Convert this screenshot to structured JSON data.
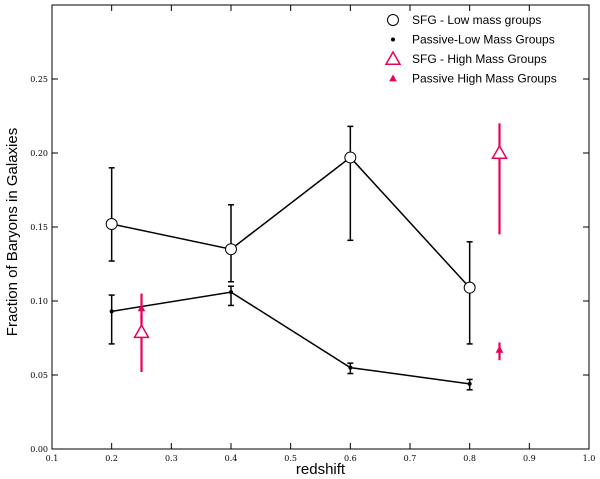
{
  "chart_data": {
    "type": "scatter",
    "xlabel": "redshift",
    "ylabel": "Fraction of Baryons in Galaxies",
    "xlim": [
      0.1,
      1.0
    ],
    "ylim": [
      0.0,
      0.3
    ],
    "xticks": [
      0.1,
      0.2,
      0.3,
      0.4,
      0.5,
      0.6,
      0.7,
      0.8,
      0.9,
      1.0
    ],
    "xtick_labels": [
      "0.1",
      "0.2",
      "0.3",
      "0.4",
      "0.5",
      "0.6",
      "0.7",
      "0.8",
      "0.9",
      "1.0"
    ],
    "yticks": [
      0.0,
      0.05,
      0.1,
      0.15,
      0.2,
      0.25
    ],
    "ytick_labels": [
      "0.00",
      "0.05",
      "0.10",
      "0.15",
      "0.20",
      "0.25"
    ],
    "grid": false,
    "legend_position": "top-right",
    "series": [
      {
        "name": "SFG - Low mass groups",
        "marker": "open-circle",
        "color": "#000000",
        "connected": true,
        "x": [
          0.2,
          0.4,
          0.6,
          0.8
        ],
        "y": [
          0.152,
          0.135,
          0.197,
          0.109
        ],
        "yerr_low": [
          0.127,
          0.113,
          0.141,
          0.071
        ],
        "yerr_high": [
          0.19,
          0.165,
          0.218,
          0.14
        ]
      },
      {
        "name": "Passive-Low Mass Groups",
        "marker": "dot",
        "color": "#000000",
        "connected": true,
        "x": [
          0.2,
          0.4,
          0.6,
          0.8
        ],
        "y": [
          0.093,
          0.106,
          0.055,
          0.044
        ],
        "yerr_low": [
          0.071,
          0.097,
          0.051,
          0.04
        ],
        "yerr_high": [
          0.104,
          0.11,
          0.058,
          0.047
        ]
      },
      {
        "name": "SFG - High Mass Groups",
        "marker": "open-triangle",
        "color": "#e8005a",
        "connected": false,
        "x": [
          0.25,
          0.85
        ],
        "y": [
          0.079,
          0.2
        ],
        "yerr_low": [
          0.052,
          0.145
        ],
        "yerr_high": [
          0.091,
          0.22
        ]
      },
      {
        "name": "Passive High Mass Groups",
        "marker": "small-triangle",
        "color": "#e8005a",
        "connected": false,
        "x": [
          0.25,
          0.85
        ],
        "y": [
          0.095,
          0.067
        ],
        "yerr_low": [
          0.085,
          0.06
        ],
        "yerr_high": [
          0.105,
          0.072
        ]
      }
    ]
  }
}
